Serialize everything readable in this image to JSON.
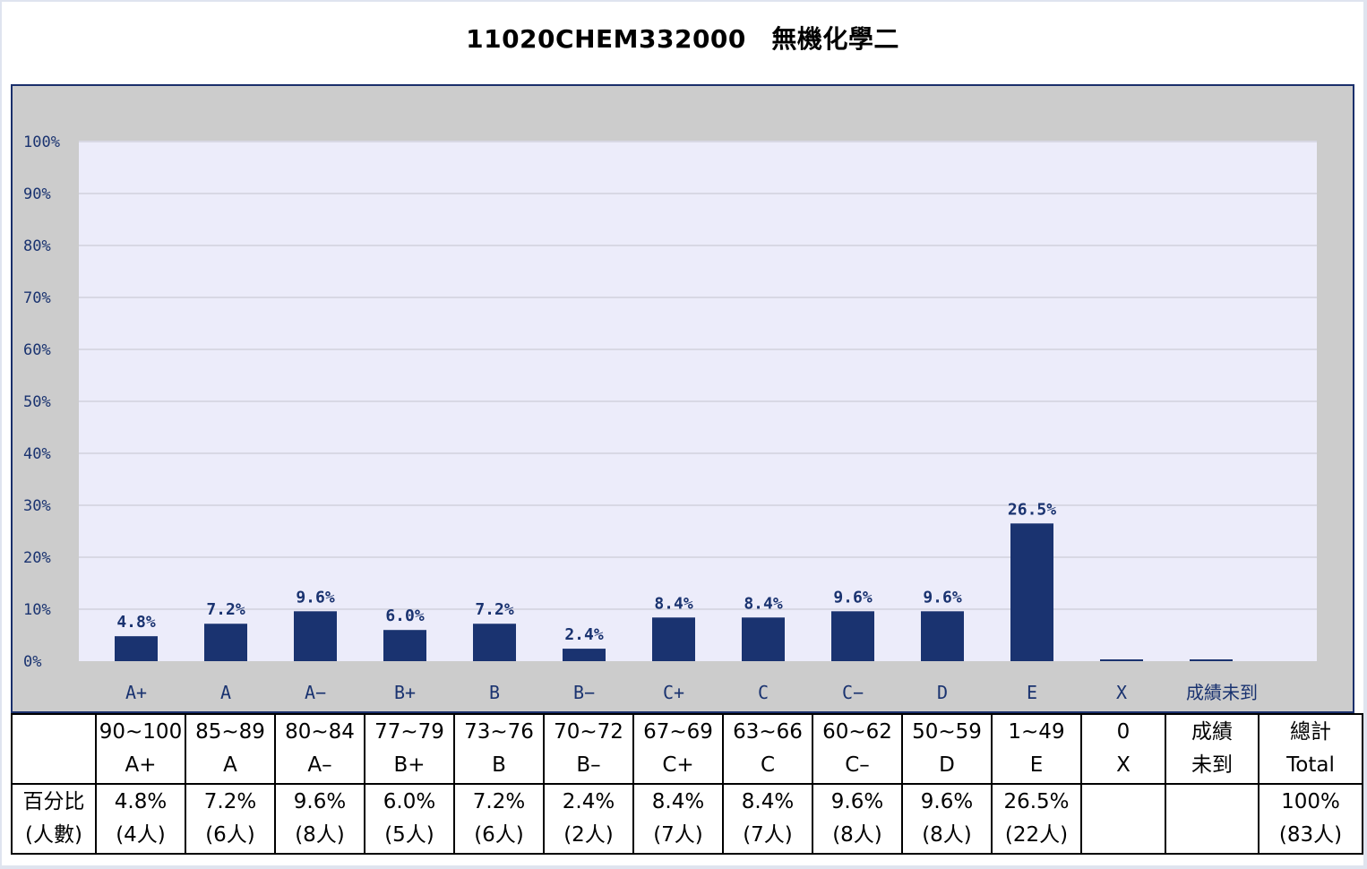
{
  "title": "11020CHEM332000　無機化學二",
  "chart_data": {
    "type": "bar",
    "categories": [
      "A+",
      "A",
      "A−",
      "B+",
      "B",
      "B−",
      "C+",
      "C",
      "C−",
      "D",
      "E",
      "X",
      "成績未到"
    ],
    "values": [
      4.8,
      7.2,
      9.6,
      6.0,
      7.2,
      2.4,
      8.4,
      8.4,
      9.6,
      9.6,
      26.5,
      0,
      0
    ],
    "data_labels": [
      "4.8%",
      "7.2%",
      "9.6%",
      "6.0%",
      "7.2%",
      "2.4%",
      "8.4%",
      "8.4%",
      "9.6%",
      "9.6%",
      "26.5%",
      "",
      ""
    ],
    "y_ticks": [
      "0%",
      "10%",
      "20%",
      "30%",
      "40%",
      "50%",
      "60%",
      "70%",
      "80%",
      "90%",
      "100%"
    ],
    "ylim": [
      0,
      100
    ],
    "grid": true,
    "colors": {
      "bar": "#1a3370",
      "plot_bg": "#ececfa",
      "frame_bg": "#cccccc",
      "grid": "#d8d8e4",
      "label": "#1a3370"
    }
  },
  "table": {
    "header_row": [
      {
        "range": "",
        "grade": ""
      },
      {
        "range": "90~100",
        "grade": "A+"
      },
      {
        "range": "85~89",
        "grade": "A"
      },
      {
        "range": "80~84",
        "grade": "A–"
      },
      {
        "range": "77~79",
        "grade": "B+"
      },
      {
        "range": "73~76",
        "grade": "B"
      },
      {
        "range": "70~72",
        "grade": "B–"
      },
      {
        "range": "67~69",
        "grade": "C+"
      },
      {
        "range": "63~66",
        "grade": "C"
      },
      {
        "range": "60~62",
        "grade": "C–"
      },
      {
        "range": "50~59",
        "grade": "D"
      },
      {
        "range": "1~49",
        "grade": "E"
      },
      {
        "range": "0",
        "grade": "X"
      },
      {
        "range": "成績",
        "grade": "未到"
      },
      {
        "range": "總計",
        "grade": "Total"
      }
    ],
    "value_row": [
      {
        "pct": "百分比",
        "count": "(人數)"
      },
      {
        "pct": "4.8%",
        "count": "(4人)"
      },
      {
        "pct": "7.2%",
        "count": "(6人)"
      },
      {
        "pct": "9.6%",
        "count": "(8人)"
      },
      {
        "pct": "6.0%",
        "count": "(5人)"
      },
      {
        "pct": "7.2%",
        "count": "(6人)"
      },
      {
        "pct": "2.4%",
        "count": "(2人)"
      },
      {
        "pct": "8.4%",
        "count": "(7人)"
      },
      {
        "pct": "8.4%",
        "count": "(7人)"
      },
      {
        "pct": "9.6%",
        "count": "(8人)"
      },
      {
        "pct": "9.6%",
        "count": "(8人)"
      },
      {
        "pct": "26.5%",
        "count": "(22人)"
      },
      {
        "pct": "",
        "count": ""
      },
      {
        "pct": "",
        "count": ""
      },
      {
        "pct": "100%",
        "count": "(83人)"
      }
    ]
  }
}
